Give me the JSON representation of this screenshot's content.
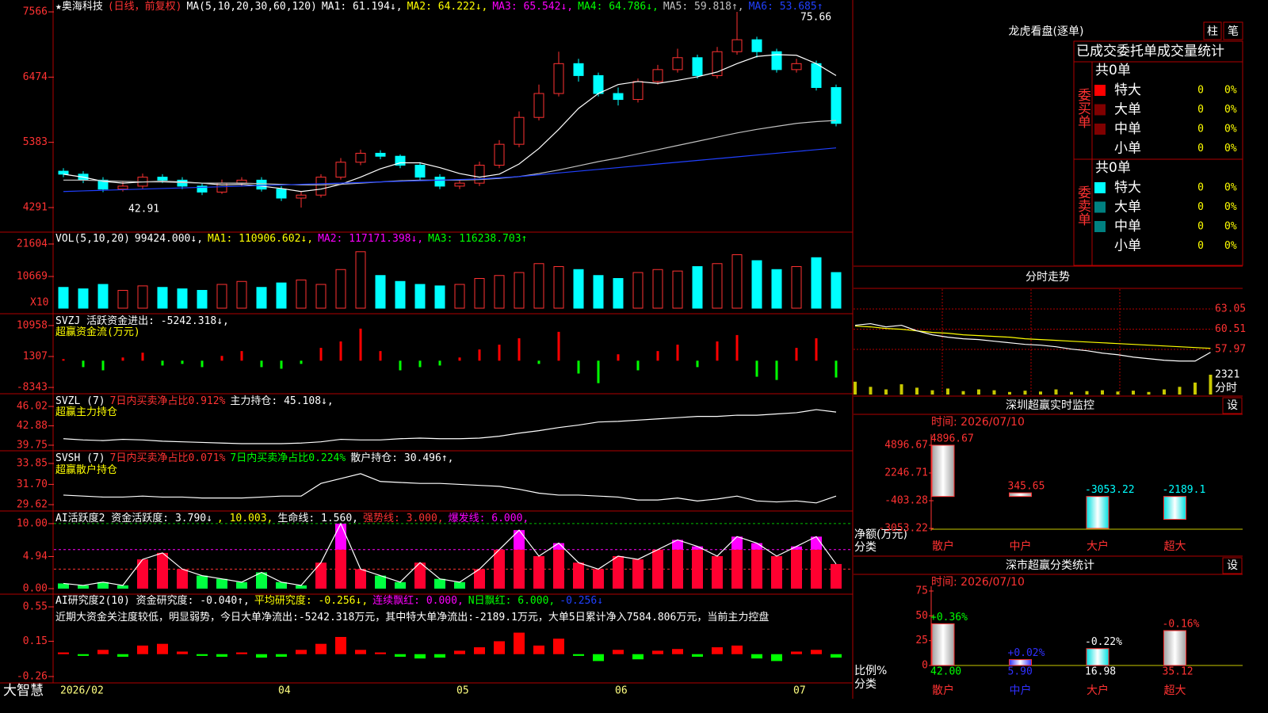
{
  "app": {
    "brand": "大智慧"
  },
  "main": {
    "header": [
      {
        "text": "★奥海科技",
        "color": "#ffffff"
      },
      {
        "text": "(日线，前复权)",
        "color": "#ff3232"
      },
      {
        "text": "MA(5,10,20,30,60,120)",
        "color": "#ffffff"
      },
      {
        "text": "MA1: 61.194↓,",
        "color": "#ffffff"
      },
      {
        "text": "MA2: 64.222↓,",
        "color": "#ffff00"
      },
      {
        "text": "MA3: 65.542↓,",
        "color": "#ff00ff"
      },
      {
        "text": "MA4: 64.786↓,",
        "color": "#00ff00"
      },
      {
        "text": "MA5: 59.818↑,",
        "color": "#c0c0c0"
      },
      {
        "text": "MA6: 53.685↑",
        "color": "#2040ff"
      }
    ],
    "annotations": [
      "75.66",
      "42.91"
    ],
    "ylim": [
      3880,
      7765
    ],
    "yticks": [
      7566,
      6474,
      5383,
      4291
    ],
    "dates": [
      "2026/02",
      null,
      null,
      null,
      null,
      null,
      null,
      null,
      null,
      null,
      null,
      "04",
      null,
      null,
      null,
      null,
      null,
      null,
      null,
      null,
      "05",
      null,
      null,
      null,
      null,
      null,
      null,
      null,
      "06",
      null,
      null,
      null,
      null,
      null,
      null,
      null,
      null,
      "07",
      null,
      null
    ],
    "open": [
      4900,
      4850,
      4750,
      4600,
      4650,
      4800,
      4750,
      4650,
      4550,
      4700,
      4750,
      4600,
      4450,
      4500,
      4800,
      5050,
      5200,
      5150,
      5000,
      4800,
      4650,
      4700,
      5000,
      5350,
      5800,
      6200,
      6700,
      6500,
      6200,
      6100,
      6400,
      6600,
      6800,
      6500,
      6900,
      7100,
      6900,
      6600,
      6700,
      6300
    ],
    "high": [
      4950,
      4900,
      4800,
      4720,
      4860,
      4850,
      4800,
      4700,
      4760,
      4800,
      4800,
      4650,
      4560,
      4850,
      5120,
      5260,
      5250,
      5180,
      5050,
      4850,
      4760,
      5060,
      5420,
      5900,
      6350,
      6900,
      6780,
      6550,
      6300,
      6450,
      6680,
      6950,
      6850,
      6980,
      7566,
      7150,
      6950,
      6780,
      6750,
      6350
    ],
    "low": [
      4800,
      4700,
      4550,
      4560,
      4600,
      4700,
      4600,
      4500,
      4520,
      4650,
      4560,
      4400,
      4291,
      4460,
      4760,
      5000,
      5100,
      4950,
      4750,
      4600,
      4600,
      4650,
      4950,
      5300,
      5750,
      6150,
      6400,
      6150,
      6000,
      6050,
      6350,
      6550,
      6450,
      6450,
      6850,
      6800,
      6550,
      6550,
      6250,
      5650
    ],
    "close": [
      4850,
      4750,
      4600,
      4650,
      4800,
      4750,
      4650,
      4550,
      4700,
      4750,
      4600,
      4450,
      4500,
      4800,
      5050,
      5200,
      5150,
      5000,
      4800,
      4650,
      4700,
      5000,
      5350,
      5800,
      6200,
      6700,
      6500,
      6200,
      6100,
      6400,
      6600,
      6800,
      6500,
      6900,
      7100,
      6900,
      6600,
      6700,
      6300,
      5700
    ],
    "ma": [
      {
        "color": "#ffffff",
        "values": [
          4850,
          4800,
          4730,
          4700,
          4720,
          4730,
          4720,
          4700,
          4670,
          4680,
          4650,
          4610,
          4560,
          4600,
          4680,
          4800,
          4940,
          5040,
          5040,
          4960,
          4860,
          4800,
          4850,
          5020,
          5280,
          5600,
          5950,
          6200,
          6350,
          6400,
          6370,
          6420,
          6480,
          6560,
          6700,
          6820,
          6850,
          6840,
          6700,
          6500
        ]
      },
      {
        "color": "#c0c0c0",
        "values": [
          4750,
          4750,
          4740,
          4730,
          4720,
          4720,
          4710,
          4700,
          4700,
          4700,
          4690,
          4680,
          4670,
          4670,
          4680,
          4700,
          4720,
          4740,
          4750,
          4750,
          4750,
          4760,
          4780,
          4810,
          4860,
          4920,
          4990,
          5060,
          5120,
          5190,
          5260,
          5330,
          5400,
          5470,
          5540,
          5600,
          5650,
          5700,
          5730,
          5750
        ]
      },
      {
        "color": "#2040ff",
        "values": [
          4560,
          4570,
          4580,
          4590,
          4600,
          4610,
          4620,
          4630,
          4640,
          4650,
          4660,
          4670,
          4680,
          4690,
          4700,
          4710,
          4720,
          4730,
          4740,
          4750,
          4760,
          4770,
          4790,
          4810,
          4840,
          4870,
          4900,
          4930,
          4960,
          4990,
          5020,
          5050,
          5080,
          5110,
          5140,
          5170,
          5200,
          5230,
          5260,
          5290
        ]
      }
    ]
  },
  "volume": {
    "header": [
      {
        "text": "VOL(5,10,20)",
        "color": "#ffffff"
      },
      {
        "text": "99424.000↓,",
        "color": "#ffffff"
      },
      {
        "text": "MA1: 110906.602↓,",
        "color": "#ffff00"
      },
      {
        "text": "MA2: 117171.398↓,",
        "color": "#ff00ff"
      },
      {
        "text": "MA3: 116238.703↑",
        "color": "#00ff00"
      }
    ],
    "unit": "X10",
    "ylim": [
      0,
      25340
    ],
    "yticks": [
      21604,
      10669
    ],
    "values": [
      7000,
      6500,
      8000,
      6000,
      7500,
      7000,
      6500,
      6000,
      8000,
      9000,
      7000,
      8500,
      9500,
      8000,
      13000,
      19000,
      11000,
      9000,
      8000,
      7500,
      8000,
      10000,
      11000,
      12000,
      15000,
      14000,
      13000,
      11000,
      10000,
      12000,
      13000,
      12500,
      14000,
      15000,
      18000,
      16000,
      13000,
      14000,
      17000,
      12000
    ]
  },
  "svzj": {
    "header": [
      {
        "text": "SVZJ  活跃资金进出: -5242.318↓,",
        "color": "#ffffff"
      }
    ],
    "subtitle": [
      {
        "text": "超赢资金流(万元)",
        "color": "#ffff00"
      }
    ],
    "ylim": [
      -10300,
      14400
    ],
    "yticks": [
      10958,
      1307,
      -8343
    ],
    "values": [
      500,
      -2000,
      -3000,
      1000,
      2500,
      -1500,
      -1000,
      -2000,
      1500,
      3000,
      -2000,
      -2500,
      -1000,
      4000,
      6000,
      10000,
      3000,
      -3000,
      -2000,
      -1500,
      1000,
      3500,
      5000,
      7000,
      -1000,
      9000,
      -4000,
      -7000,
      2000,
      -3000,
      3000,
      5000,
      -2000,
      6000,
      8000,
      -5000,
      -6000,
      4000,
      7000,
      -5242
    ]
  },
  "svzl": {
    "header": [
      {
        "text": "SVZL (7)",
        "color": "#ffffff"
      },
      {
        "text": "7日内买卖净占比0.912%",
        "color": "#ff3232"
      },
      {
        "text": "主力持仓: 45.108↓,",
        "color": "#ffffff"
      }
    ],
    "subtitle": [
      {
        "text": "超赢主力持仓",
        "color": "#ffff00"
      }
    ],
    "ylim": [
      38.85,
      47.94
    ],
    "yticks": [
      46.02,
      42.88,
      39.75
    ],
    "values": [
      40.8,
      40.6,
      40.5,
      40.7,
      40.6,
      40.4,
      40.3,
      40.2,
      40.1,
      40.0,
      40.0,
      40.0,
      40.1,
      40.3,
      40.7,
      40.6,
      40.6,
      40.8,
      40.9,
      40.8,
      40.8,
      40.9,
      41.2,
      41.7,
      42.1,
      42.6,
      43.0,
      43.5,
      43.6,
      43.8,
      44.0,
      44.2,
      44.4,
      44.4,
      44.6,
      44.6,
      44.8,
      45.0,
      45.5,
      45.108
    ]
  },
  "svsh": {
    "header": [
      {
        "text": "SVSH (7)",
        "color": "#ffffff"
      },
      {
        "text": "7日内买卖净占比0.071%",
        "color": "#ff3232"
      },
      {
        "text": "7日内买卖净占比0.224%",
        "color": "#00ff00"
      },
      {
        "text": "散户持仓: 30.496↑,",
        "color": "#ffffff"
      }
    ],
    "subtitle": [
      {
        "text": "超赢散户持仓",
        "color": "#ffff00"
      }
    ],
    "ylim": [
      28.97,
      35.07
    ],
    "yticks": [
      33.85,
      {
        "value": 31.7,
        "label": "31.70"
      },
      29.62
    ],
    "values": [
      30.6,
      30.5,
      30.4,
      30.4,
      30.5,
      30.4,
      30.4,
      30.3,
      30.3,
      30.3,
      30.4,
      30.5,
      30.5,
      31.8,
      32.3,
      32.8,
      32.0,
      31.9,
      31.8,
      31.8,
      31.7,
      31.6,
      31.5,
      31.2,
      30.8,
      30.6,
      30.6,
      30.5,
      30.4,
      30.1,
      30.1,
      30.3,
      30.0,
      30.2,
      30.5,
      30.0,
      29.9,
      30.0,
      29.8,
      30.496
    ]
  },
  "ai_active": {
    "header": [
      {
        "text": "AI活跃度2 资金活跃度: 3.790↓",
        "color": "#ffffff"
      },
      {
        "text": ", 10.003,",
        "color": "#ffff00"
      },
      {
        "text": "生命线: 1.560,",
        "color": "#ffffff"
      },
      {
        "text": "强势线: 3.000,",
        "color": "#ff3232"
      },
      {
        "text": "爆发线: 6.000,",
        "color": "#ff00ff"
      }
    ],
    "ref_lines": [
      {
        "value": 10.003,
        "color": "#00c000"
      },
      {
        "value": 6,
        "color": "#ff00ff"
      },
      {
        "value": 3,
        "color": "#ff3232"
      }
    ],
    "ylim": [
      -0.85,
      11.7
    ],
    "yticks": [
      {
        "value": 10,
        "label": "10.00"
      },
      4.94,
      {
        "value": 0,
        "label": "0.00"
      }
    ],
    "values": [
      0.8,
      0.5,
      1.0,
      0.5,
      4.5,
      5.5,
      3.0,
      2.0,
      1.5,
      1.0,
      2.5,
      1.0,
      0.5,
      4.0,
      10.0,
      3.0,
      2.0,
      1.0,
      4.0,
      1.5,
      1.0,
      3.0,
      6.0,
      9.0,
      5.0,
      7.0,
      4.0,
      3.0,
      5.0,
      4.5,
      6.0,
      7.5,
      6.5,
      5.0,
      8.0,
      7.0,
      5.0,
      6.5,
      8.0,
      3.79
    ]
  },
  "ai_research": {
    "header": [
      {
        "text": "AI研究度2(10) 资金研究度: -0.040↑,",
        "color": "#ffffff"
      },
      {
        "text": "平均研究度: -0.256↓,",
        "color": "#ffff00"
      },
      {
        "text": "连续飘红: 0.000,",
        "color": "#ff00ff"
      },
      {
        "text": "N日飘红: 6.000,",
        "color": "#00ff00"
      },
      {
        "text": "-0.256↓",
        "color": "#2040ff"
      }
    ],
    "subtitle": [
      {
        "text": "近期大资金关注度较低，明显弱势，今日大单净流出:-5242.318万元，其中特大单净流出:-2189.1万元，大单5日累计净入7584.806万元，当前主力控盘",
        "color": "#ffffff"
      }
    ],
    "ylim": [
      -0.334,
      0.688
    ],
    "yticks": [
      0.55,
      0.15,
      -0.26
    ],
    "values": [
      0.02,
      -0.02,
      0.05,
      -0.03,
      0.1,
      0.12,
      0.03,
      -0.02,
      -0.03,
      0.02,
      -0.04,
      -0.03,
      0.05,
      0.12,
      0.2,
      0.05,
      0.02,
      -0.03,
      -0.05,
      -0.04,
      0.04,
      0.08,
      0.15,
      0.25,
      0.1,
      0.18,
      -0.02,
      -0.08,
      0.05,
      -0.06,
      0.04,
      0.06,
      -0.03,
      0.08,
      0.1,
      -0.05,
      -0.08,
      0.03,
      0.05,
      -0.04
    ]
  },
  "longhu": {
    "title": "龙虎看盘(逐单)",
    "buttons": [
      "柱",
      "笔"
    ],
    "table_title": "已成交委托单成交量统计",
    "groups": [
      {
        "label": "委买单",
        "total": "共0单",
        "rows": [
          {
            "name": "特大",
            "color": "#ff0000",
            "count": 0,
            "pct": "0%"
          },
          {
            "name": "大单",
            "color": "#800000",
            "count": 0,
            "pct": "0%"
          },
          {
            "name": "中单",
            "color": "#800000",
            "count": 0,
            "pct": "0%"
          },
          {
            "name": "小单",
            "count": 0,
            "pct": "0%"
          }
        ]
      },
      {
        "label": "委卖单",
        "total": "共0单",
        "rows": [
          {
            "name": "特大",
            "color": "#00ffff",
            "count": 0,
            "pct": "0%"
          },
          {
            "name": "大单",
            "color": "#008080",
            "count": 0,
            "pct": "0%"
          },
          {
            "name": "中单",
            "color": "#008080",
            "count": 0,
            "pct": "0%"
          },
          {
            "name": "小单",
            "count": 0,
            "pct": "0%"
          }
        ]
      }
    ]
  },
  "intraday": {
    "title": "分时走势",
    "label": "分时",
    "ylim": [
      55.58,
      65.54
    ],
    "yticks": [
      63.05,
      60.51,
      57.97
    ],
    "price": [
      61.0,
      61.2,
      60.8,
      61.0,
      60.3,
      59.8,
      59.5,
      59.3,
      59.2,
      59.0,
      58.8,
      58.6,
      58.5,
      58.3,
      58.0,
      57.8,
      57.5,
      57.3,
      57.0,
      56.8,
      56.6,
      56.5,
      56.5,
      57.6
    ],
    "avg": [
      60.9,
      60.8,
      60.6,
      60.5,
      60.3,
      60.1,
      60.0,
      59.8,
      59.7,
      59.6,
      59.5,
      59.3,
      59.2,
      59.1,
      59.0,
      58.9,
      58.8,
      58.7,
      58.6,
      58.5,
      58.4,
      58.3,
      58.2,
      58.1
    ],
    "vol_ylim": [
      0,
      3060
    ],
    "vol_ticks": [
      2321
    ],
    "volume": [
      1500,
      900,
      600,
      1200,
      800,
      500,
      700,
      400,
      600,
      500,
      300,
      450,
      350,
      600,
      300,
      400,
      500,
      350,
      450,
      300,
      600,
      900,
      1400,
      2321
    ]
  },
  "sz_monitor": {
    "title": "深圳超赢实时监控",
    "button": "设",
    "time": "时间: 2026/07/10",
    "axis_labels": [
      "净额(万元)",
      "分类"
    ],
    "ylim": [
      -3280,
      5956
    ],
    "yticks": [
      4896.67,
      2246.71,
      -403.28,
      -3053.22
    ],
    "categories": [
      "散户",
      "中户",
      "大户",
      "超大"
    ],
    "values": [
      4896.67,
      345.65,
      -3053.22,
      -2189.1
    ],
    "colors": [
      "#a0a0a0",
      "#a0a0a0",
      "#00e0e0",
      "#00e0e0"
    ],
    "label_colors": [
      "#ff3232",
      "#ff3232",
      "#00ffff",
      "#00ffff"
    ]
  },
  "sz_stats": {
    "title": "深市超赢分类统计",
    "button": "设",
    "time": "时间: 2026/07/10",
    "axis_labels": [
      "比例%",
      "分类"
    ],
    "ylim": [
      0,
      79.8
    ],
    "yticks": [
      75,
      50,
      25,
      0
    ],
    "categories": [
      "散户",
      "中户",
      "大户",
      "超大"
    ],
    "values": [
      42,
      5.9,
      16.98,
      35.12
    ],
    "value_labels": [
      "42.00",
      "5.90",
      "16.98",
      "35.12"
    ],
    "changes": [
      "+0.36%",
      "+0.02%",
      "-0.22%",
      "-0.16%"
    ],
    "colors": [
      "#a0a0a0",
      "#3030ff",
      "#00e0e0",
      "#a0a0a0"
    ],
    "label_colors": [
      "#00ff00",
      "#3030ff",
      "#ffffff",
      "#ff3232"
    ],
    "category_colors": [
      "#ff3232",
      "#3030ff",
      "#ff3232",
      "#ff3232"
    ]
  }
}
